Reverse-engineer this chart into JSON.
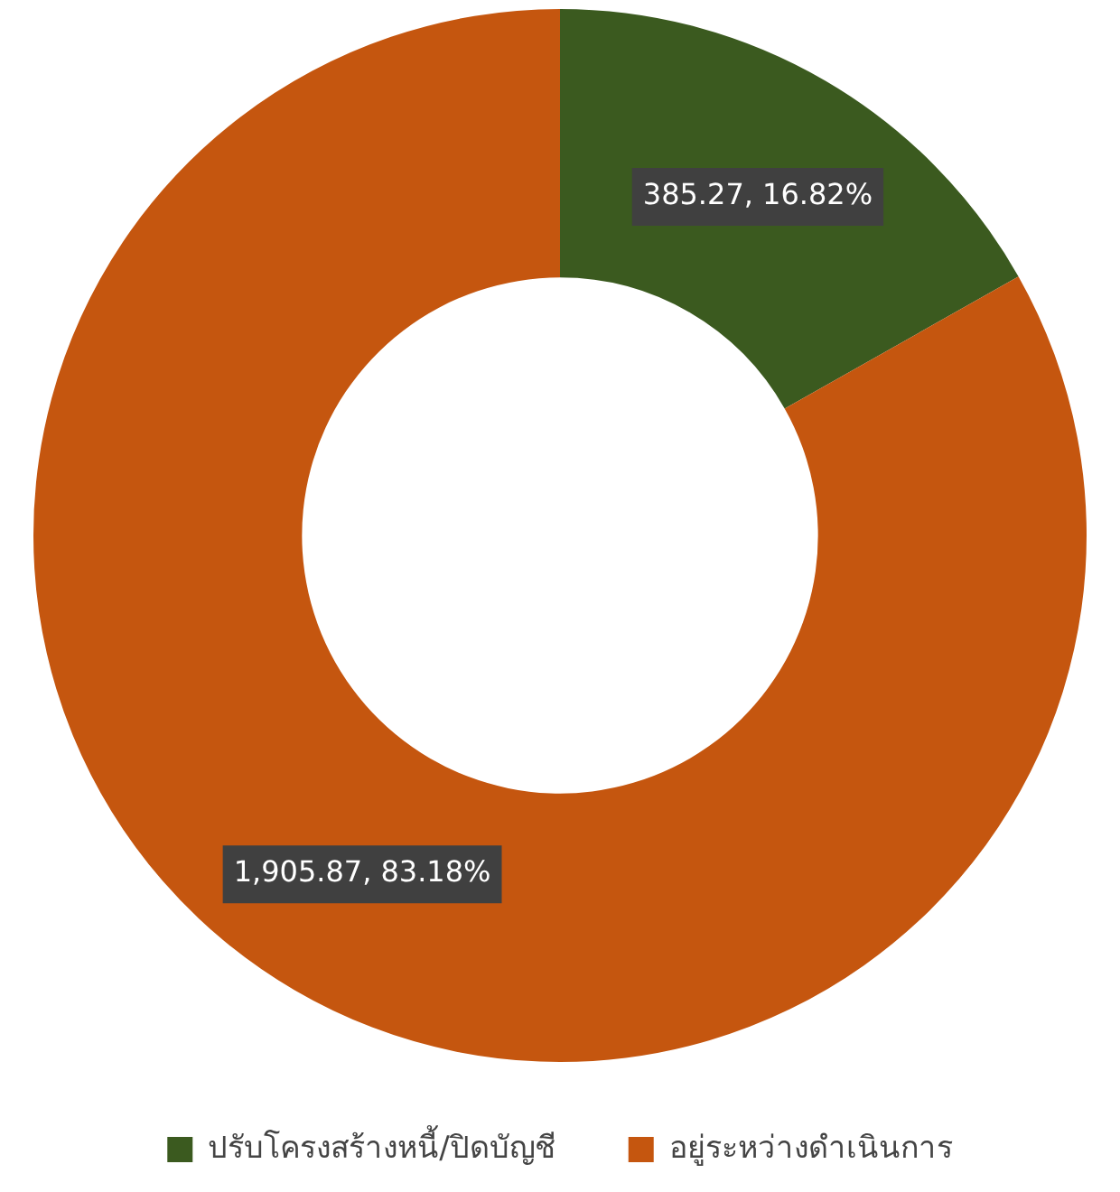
{
  "chart_data": {
    "type": "donut",
    "categories": [
      "ปรับโครงสร้างหนี้/ปิดบัญชี",
      "อยู่ระหว่างดำเนินการ"
    ],
    "values": [
      385.27,
      1905.87
    ],
    "colors": [
      "#3b5a1f",
      "#c5560f"
    ],
    "value_labels": [
      "385.27, 16.82%",
      "1,905.87, 83.18%"
    ],
    "legend": "bottom"
  }
}
